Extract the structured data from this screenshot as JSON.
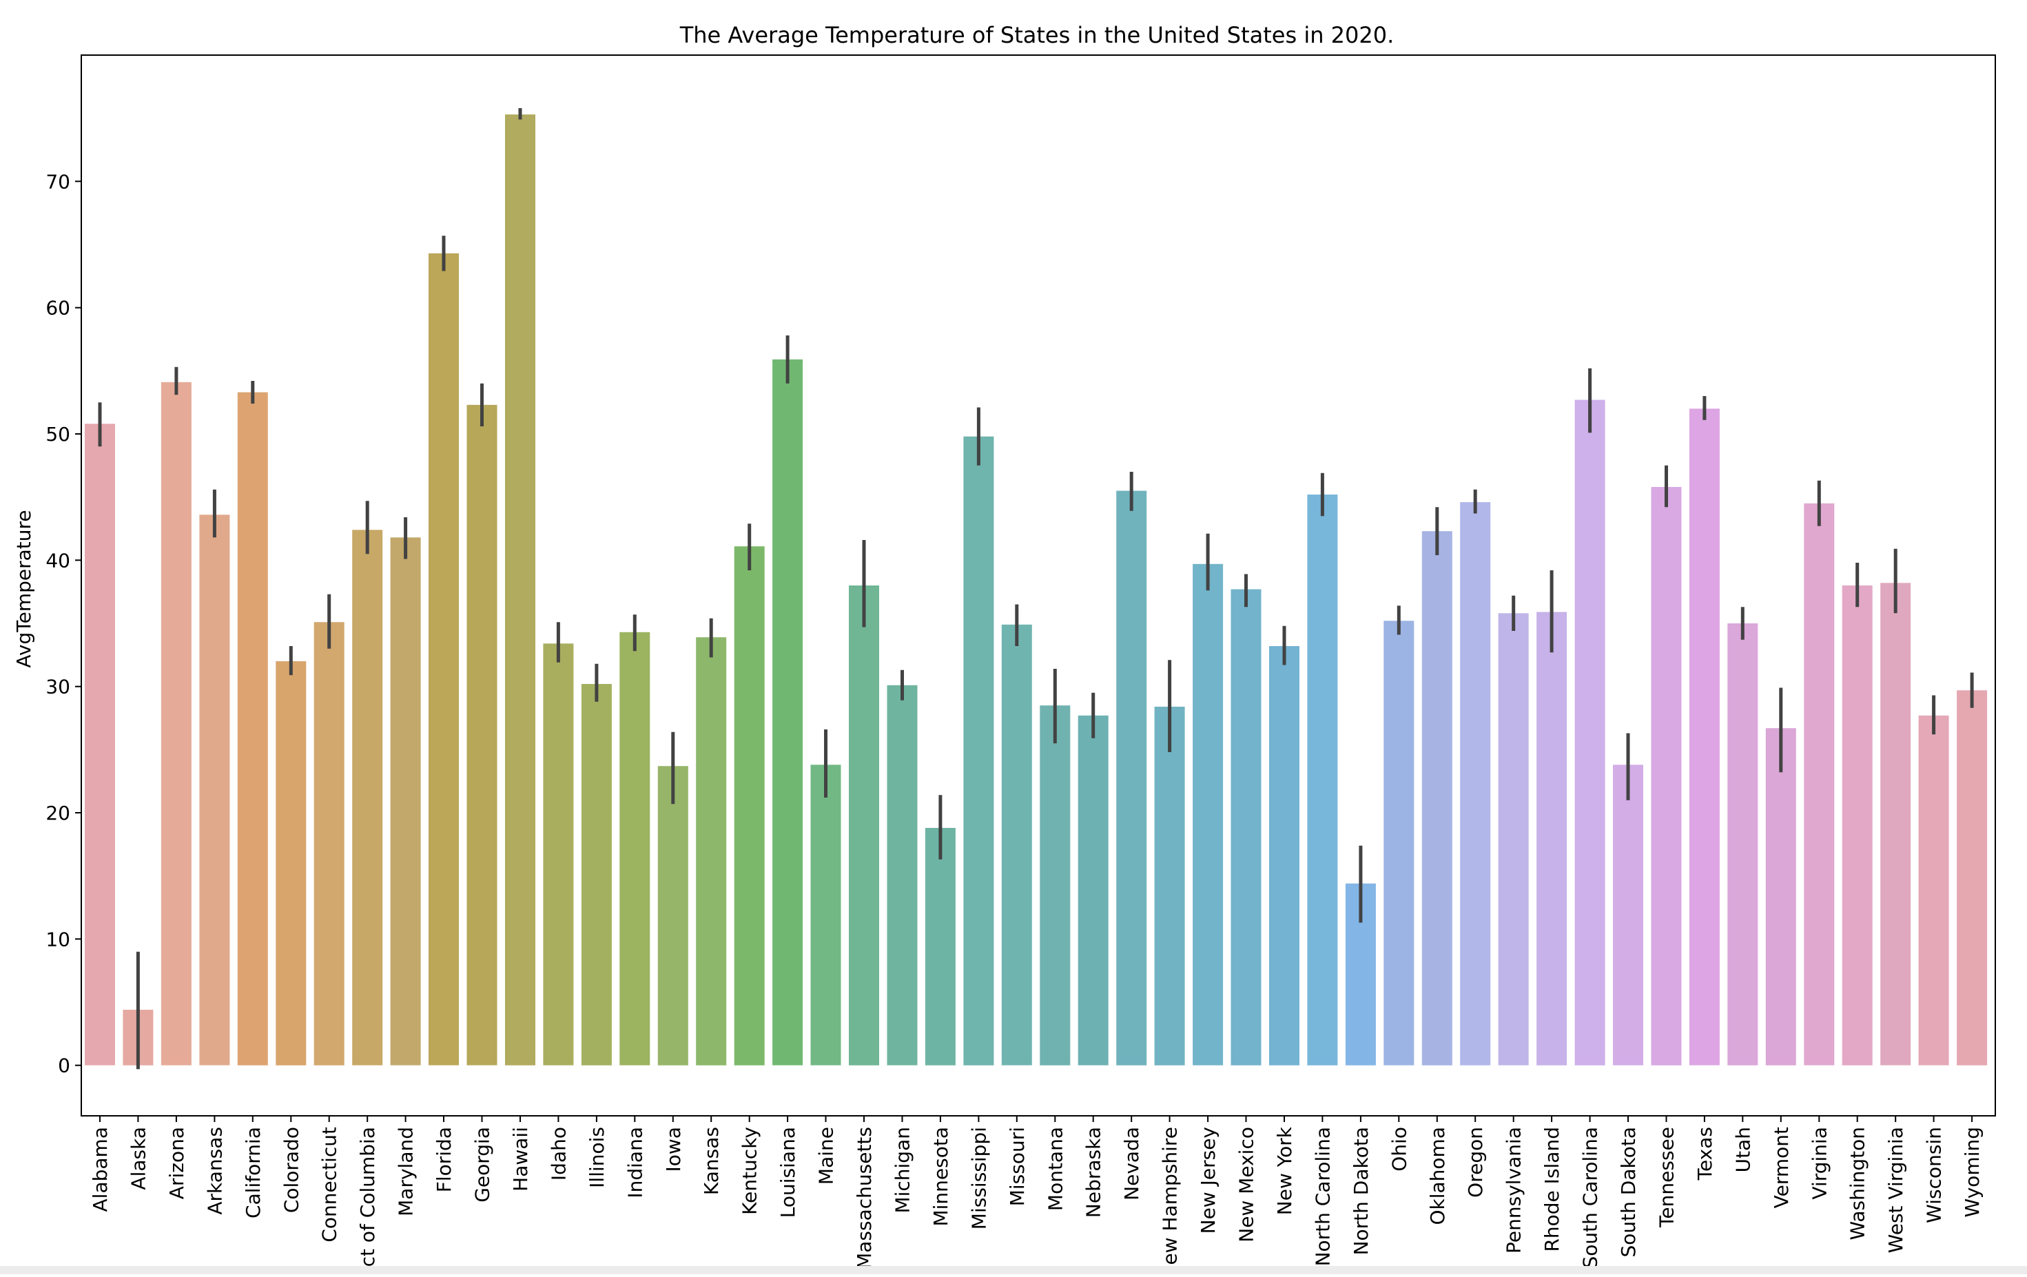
{
  "chart_data": {
    "type": "bar",
    "title": "The Average Temperature of States in the United States in 2020.",
    "xlabel": "",
    "ylabel": "AvgTemperature",
    "ylim": [
      -4,
      80
    ],
    "yticks": [
      0,
      10,
      20,
      30,
      40,
      50,
      60,
      70
    ],
    "grid": false,
    "categories": [
      "Alabama",
      "Alaska",
      "Arizona",
      "Arkansas",
      "California",
      "Colorado",
      "Connecticut",
      "District of Columbia",
      "Maryland",
      "Florida",
      "Georgia",
      "Hawaii",
      "Idaho",
      "Illinois",
      "Indiana",
      "Iowa",
      "Kansas",
      "Kentucky",
      "Louisiana",
      "Maine",
      "Massachusetts",
      "Michigan",
      "Minnesota",
      "Mississippi",
      "Missouri",
      "Montana",
      "Nebraska",
      "Nevada",
      "New Hampshire",
      "New Jersey",
      "New Mexico",
      "New York",
      "North Carolina",
      "North Dakota",
      "Ohio",
      "Oklahoma",
      "Oregon",
      "Pennsylvania",
      "Rhode Island",
      "South Carolina",
      "South Dakota",
      "Tennessee",
      "Texas",
      "Utah",
      "Vermont",
      "Virginia",
      "Washington",
      "West Virginia",
      "Wisconsin",
      "Wyoming"
    ],
    "values": [
      50.8,
      4.4,
      54.1,
      43.6,
      53.3,
      32.0,
      35.1,
      42.4,
      41.8,
      64.3,
      52.3,
      75.3,
      33.4,
      30.2,
      34.3,
      23.7,
      33.9,
      41.1,
      55.9,
      23.8,
      38.0,
      30.1,
      18.8,
      49.8,
      34.9,
      28.5,
      27.7,
      45.5,
      28.4,
      39.7,
      37.7,
      33.2,
      45.2,
      14.4,
      35.2,
      42.3,
      44.6,
      35.8,
      35.9,
      52.7,
      23.8,
      45.8,
      52.0,
      35.0,
      26.7,
      44.5,
      38.0,
      38.2,
      27.7,
      29.7
    ],
    "error_low": [
      49.0,
      -0.3,
      53.1,
      41.8,
      52.4,
      30.9,
      33.0,
      40.5,
      40.1,
      62.9,
      50.6,
      74.9,
      31.9,
      28.8,
      32.8,
      20.7,
      32.3,
      39.2,
      54.0,
      21.2,
      34.7,
      28.9,
      16.3,
      47.5,
      33.2,
      25.5,
      25.9,
      43.9,
      24.8,
      37.6,
      36.3,
      31.7,
      43.5,
      11.3,
      34.1,
      40.4,
      43.7,
      34.4,
      32.7,
      50.1,
      21.0,
      44.2,
      51.1,
      33.7,
      23.2,
      42.7,
      36.3,
      35.8,
      26.2,
      28.3
    ],
    "error_high": [
      52.5,
      9.0,
      55.3,
      45.6,
      54.2,
      33.2,
      37.3,
      44.7,
      43.4,
      65.7,
      54.0,
      75.8,
      35.1,
      31.8,
      35.7,
      26.4,
      35.4,
      42.9,
      57.8,
      26.6,
      41.6,
      31.3,
      21.4,
      52.1,
      36.5,
      31.4,
      29.5,
      47.0,
      32.1,
      42.1,
      38.9,
      34.8,
      46.9,
      17.4,
      36.4,
      44.2,
      45.6,
      37.2,
      39.2,
      55.2,
      26.3,
      47.5,
      53.0,
      36.3,
      29.9,
      46.3,
      39.8,
      40.9,
      29.3,
      31.1
    ],
    "colors": [
      "#e5a8ae",
      "#e5a9a2",
      "#e6ab98",
      "#e1a98b",
      "#dda472",
      "#d8a56c",
      "#d2a86f",
      "#c7a867",
      "#c2a86a",
      "#bca657",
      "#b6a759",
      "#b0ab5e",
      "#a8ae5e",
      "#a3b060",
      "#9cb360",
      "#97b569",
      "#8db86c",
      "#7cb869",
      "#70b871",
      "#71b884",
      "#70b694",
      "#6fb49f",
      "#6eb4a5",
      "#6fb4ad",
      "#70b4b0",
      "#70b2b0",
      "#6eb1b3",
      "#70b3bd",
      "#71b3c2",
      "#72b4c9",
      "#73b3cc",
      "#74b3d2",
      "#78b6da",
      "#83b5e6",
      "#9bb4e3",
      "#a7b4e3",
      "#b2b7e9",
      "#bfb5e8",
      "#c7b2e9",
      "#ceb0ea",
      "#d2ade6",
      "#d8a9e3",
      "#dda5e3",
      "#dba8da",
      "#dba7d6",
      "#e0a7cf",
      "#e3a8c6",
      "#e0a8bf",
      "#e5a8b7",
      "#e5a8b0"
    ]
  }
}
